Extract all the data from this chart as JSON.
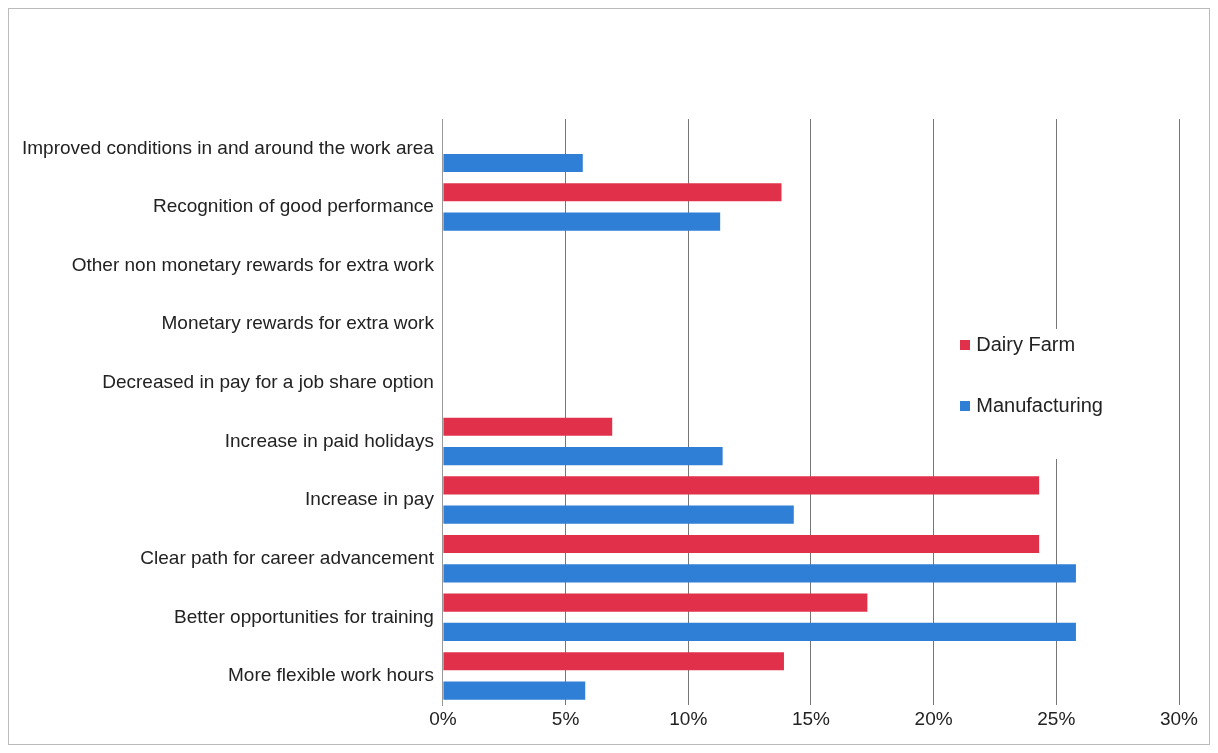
{
  "chart_data": {
    "type": "bar",
    "orientation": "horizontal",
    "categories": [
      "Improved conditions in and around the work area",
      "Recognition of good performance",
      "Other non monetary rewards for extra work",
      "Monetary rewards for extra work",
      "Decreased in pay for a job share option",
      "Increase in paid holidays",
      "Increase in pay",
      "Clear path for career advancement",
      "Better opportunities for training",
      "More flexible work hours"
    ],
    "series": [
      {
        "name": "Dairy Farm",
        "color": "#e0304a",
        "values": [
          null,
          13.8,
          null,
          null,
          null,
          6.9,
          24.3,
          24.3,
          17.3,
          13.9
        ]
      },
      {
        "name": "Manufacturing",
        "color": "#2f7fd6",
        "values": [
          5.7,
          11.3,
          null,
          null,
          null,
          11.4,
          14.3,
          25.8,
          25.8,
          5.8
        ]
      }
    ],
    "xlim": [
      0,
      30
    ],
    "xticks": [
      {
        "value": 0,
        "label": "0%"
      },
      {
        "value": 5,
        "label": "5%"
      },
      {
        "value": 10,
        "label": "10%"
      },
      {
        "value": 15,
        "label": "15%"
      },
      {
        "value": 20,
        "label": "20%"
      },
      {
        "value": 25,
        "label": "25%"
      },
      {
        "value": 30,
        "label": "30%"
      }
    ],
    "grid": "x",
    "legend": "right"
  }
}
